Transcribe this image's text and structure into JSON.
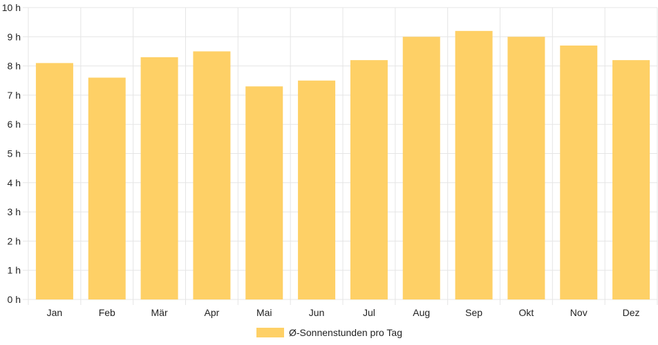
{
  "chart_data": {
    "type": "bar",
    "categories": [
      "Jan",
      "Feb",
      "Mär",
      "Apr",
      "Mai",
      "Jun",
      "Jul",
      "Aug",
      "Sep",
      "Okt",
      "Nov",
      "Dez"
    ],
    "series": [
      {
        "name": "Ø-Sonnenstunden pro Tag",
        "values": [
          8.1,
          7.6,
          8.3,
          8.5,
          7.3,
          7.5,
          8.2,
          9.0,
          9.2,
          9.0,
          8.7,
          8.2
        ],
        "color": "#fed066"
      }
    ],
    "yticks": [
      "0 h",
      "1 h",
      "2 h",
      "3 h",
      "4 h",
      "5 h",
      "6 h",
      "7 h",
      "8 h",
      "9 h",
      "10 h"
    ],
    "ylim": [
      0,
      10
    ],
    "grid": true,
    "legend_position": "bottom-center",
    "colors": {
      "grid": "#e5e5e5",
      "text": "#222222"
    }
  }
}
